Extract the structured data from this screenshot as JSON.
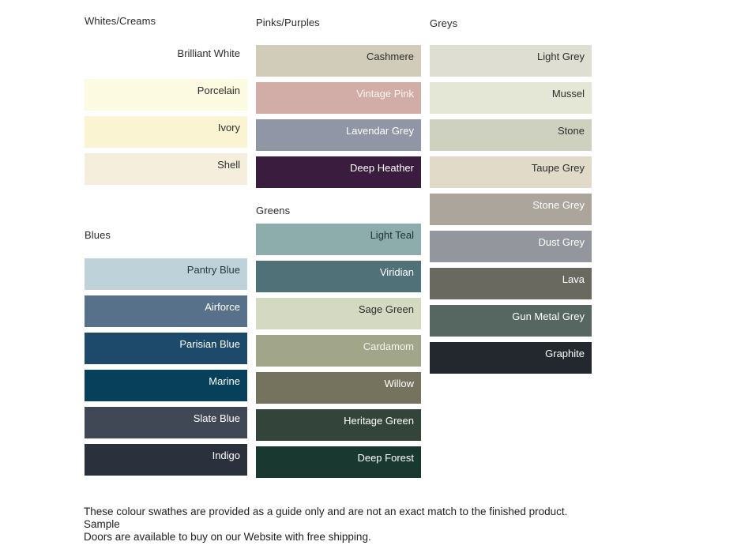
{
  "page": {
    "background": "#ffffff"
  },
  "groups": [
    {
      "title": "Whites/Creams",
      "swatches": [
        {
          "label": "Brilliant White",
          "hex": "#ffffff",
          "label_hex": "#2d2d2d"
        },
        {
          "label": "Porcelain",
          "hex": "#fdfae2",
          "label_hex": "#2d2d2d"
        },
        {
          "label": "Ivory",
          "hex": "#faf4d2",
          "label_hex": "#2d2d2d"
        },
        {
          "label": "Shell",
          "hex": "#f6eedd",
          "label_hex": "#2d2d2d"
        }
      ]
    },
    {
      "title": "Blues",
      "swatches": [
        {
          "label": "Pantry Blue",
          "hex": "#bed2d9",
          "label_hex": "#273a44"
        },
        {
          "label": "Airforce",
          "hex": "#567189",
          "label_hex": "#ffffff"
        },
        {
          "label": "Parisian Blue",
          "hex": "#1d4a6b",
          "label_hex": "#ffffff"
        },
        {
          "label": "Marine",
          "hex": "#06405a",
          "label_hex": "#ffffff"
        },
        {
          "label": "Slate Blue",
          "hex": "#414855",
          "label_hex": "#ffffff"
        },
        {
          "label": "Indigo",
          "hex": "#2a313c",
          "label_hex": "#ffffff"
        }
      ]
    },
    {
      "title": "Pinks/Purples",
      "swatches": [
        {
          "label": "Cashmere",
          "hex": "#d1cbba",
          "label_hex": "#2d2d2d"
        },
        {
          "label": "Vintage Pink",
          "hex": "#d2aca6",
          "label_hex": "#faf6f3"
        },
        {
          "label": "Lavendar Grey",
          "hex": "#9196a6",
          "label_hex": "#ffffff"
        },
        {
          "label": "Deep Heather",
          "hex": "#3a1c3f",
          "label_hex": "#ffffff"
        }
      ]
    },
    {
      "title": "Greens",
      "swatches": [
        {
          "label": "Light Teal",
          "hex": "#8dadac",
          "label_hex": "#1f3038"
        },
        {
          "label": "Viridian",
          "hex": "#517179",
          "label_hex": "#ffffff"
        },
        {
          "label": "Sage Green",
          "hex": "#d4d9c2",
          "label_hex": "#2d2d2d"
        },
        {
          "label": "Cardamom",
          "hex": "#a1a58a",
          "label_hex": "#f5f5ef"
        },
        {
          "label": "Willow",
          "hex": "#75725e",
          "label_hex": "#ffffff"
        },
        {
          "label": "Heritage Green",
          "hex": "#33453b",
          "label_hex": "#ffffff"
        },
        {
          "label": "Deep Forest",
          "hex": "#19382f",
          "label_hex": "#ffffff"
        }
      ]
    },
    {
      "title": "Greys",
      "swatches": [
        {
          "label": "Light Grey",
          "hex": "#dedfd2",
          "label_hex": "#2d2d2d"
        },
        {
          "label": "Mussel",
          "hex": "#e4e6d6",
          "label_hex": "#2d2d2d"
        },
        {
          "label": "Stone",
          "hex": "#ced1bf",
          "label_hex": "#2d2d2d"
        },
        {
          "label": "Taupe Grey",
          "hex": "#e1dac8",
          "label_hex": "#2d2d2d"
        },
        {
          "label": "Stone Grey",
          "hex": "#aba59b",
          "label_hex": "#ffffff"
        },
        {
          "label": "Dust Grey",
          "hex": "#94969e",
          "label_hex": "#ffffff"
        },
        {
          "label": "Lava",
          "hex": "#6a695f",
          "label_hex": "#ffffff"
        },
        {
          "label": "Gun Metal Grey",
          "hex": "#566661",
          "label_hex": "#ffffff"
        },
        {
          "label": "Graphite",
          "hex": "#23282e",
          "label_hex": "#ffffff"
        }
      ]
    }
  ],
  "footer": {
    "line1": "These colour swathes are provided as a guide only and are not an exact match to the finished product.  Sample",
    "line2": "Doors are available to buy on our Website with free shipping."
  }
}
